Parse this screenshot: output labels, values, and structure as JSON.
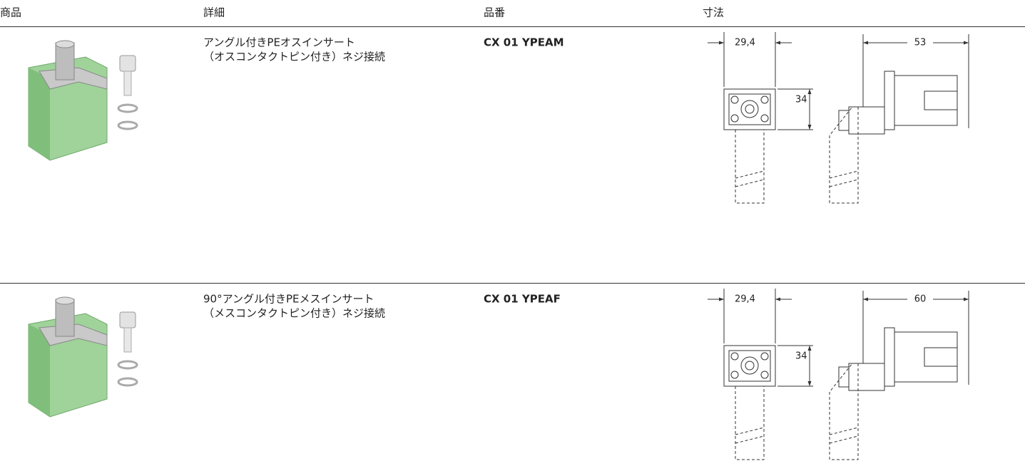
{
  "table": {
    "headers": [
      "商品",
      "詳細",
      "品番",
      "寸法"
    ],
    "rows": [
      {
        "detail": [
          "アングル付きPEオスインサート",
          "（オスコンタクトピン付き）ネジ接続"
        ],
        "part_number": "CX 01 YPEAM",
        "dimensions": {
          "width": "29,4",
          "height": "34",
          "length": "53"
        }
      },
      {
        "detail": [
          "90°アングル付きPEメスインサート",
          "（メスコンタクトピン付き）ネジ接続"
        ],
        "part_number": "CX 01 YPEAF",
        "dimensions": {
          "width": "29,4",
          "height": "34",
          "length": "60"
        }
      }
    ]
  }
}
